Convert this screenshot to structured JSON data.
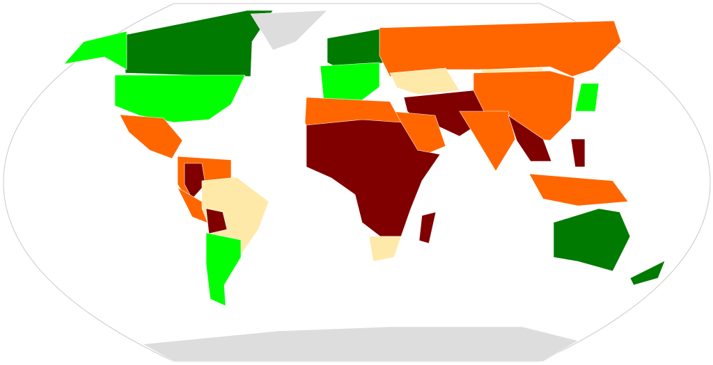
{
  "map": {
    "colors": [
      "#007a00",
      "#00ff00",
      "#ffe9a9",
      "#ff6600",
      "#800000",
      "#dddddd"
    ]
  }
}
